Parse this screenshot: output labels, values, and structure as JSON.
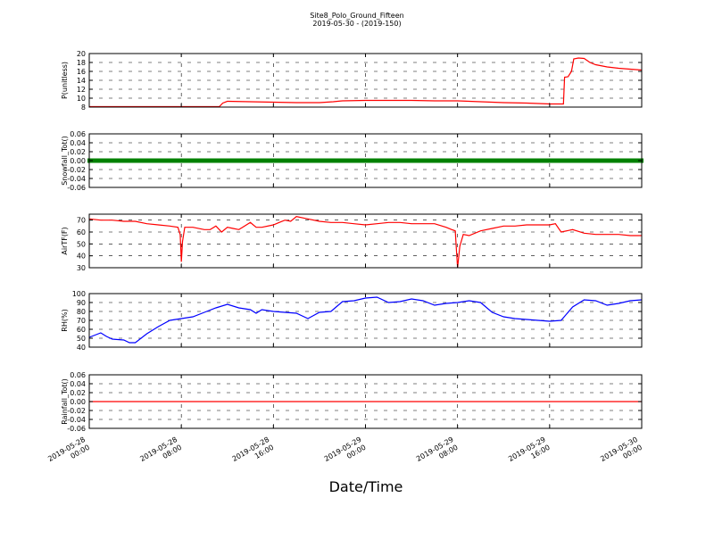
{
  "chart_data": {
    "type": "line",
    "title": "Site8_Polo_Ground_Fifteen",
    "subtitle": "2019-05-30 - (2019-150)",
    "xlabel": "Date/Time",
    "x_ticks": [
      [
        "2019-05-28",
        "00:00"
      ],
      [
        "2019-05-28",
        "08:00"
      ],
      [
        "2019-05-28",
        "16:00"
      ],
      [
        "2019-05-29",
        "00:00"
      ],
      [
        "2019-05-29",
        "08:00"
      ],
      [
        "2019-05-29",
        "16:00"
      ],
      [
        "2019-05-30",
        "00:00"
      ]
    ],
    "xlim_hours": [
      0,
      48
    ],
    "grid": true,
    "panels": [
      {
        "ylabel": "P(unitless)",
        "ylim": [
          8,
          20
        ],
        "yticks": [
          "8",
          "10",
          "12",
          "14",
          "16",
          "18",
          "20"
        ],
        "color": "#ff0000",
        "marker": false,
        "x": [
          0,
          11.3,
          11.6,
          12,
          14,
          16,
          18,
          20,
          21.2,
          22,
          24,
          26,
          28,
          30,
          32,
          34,
          36,
          38,
          40,
          41.2,
          41.3,
          41.6,
          41.9,
          42.1,
          42.5,
          43,
          43.5,
          44,
          45,
          46,
          47,
          48
        ],
        "y": [
          8.1,
          8.1,
          8.9,
          9.3,
          9.2,
          9.1,
          9.0,
          9.0,
          9.2,
          9.4,
          9.5,
          9.5,
          9.5,
          9.4,
          9.4,
          9.2,
          9.0,
          8.9,
          8.7,
          8.7,
          14.7,
          14.8,
          16.0,
          18.8,
          19.0,
          18.9,
          18.0,
          17.5,
          17.0,
          16.7,
          16.5,
          16.3
        ]
      },
      {
        "ylabel": "Snowfall_Tot()",
        "ylim": [
          -0.06,
          0.06
        ],
        "yticks": [
          "-0.06",
          "-0.04",
          "-0.02",
          "0.00",
          "0.02",
          "0.04",
          "0.06"
        ],
        "color": "#008000",
        "marker": true,
        "x": [
          0,
          48
        ],
        "y": [
          0,
          0
        ]
      },
      {
        "ylabel": "AirTF(F)",
        "ylim": [
          30,
          75
        ],
        "yticks": [
          "30",
          "40",
          "50",
          "60",
          "70"
        ],
        "color": "#ff0000",
        "marker": false,
        "x": [
          0,
          1,
          2,
          3,
          4,
          5,
          6,
          7,
          7.7,
          7.9,
          8.0,
          8.1,
          8.3,
          9,
          10,
          10.5,
          11,
          11.5,
          12,
          12.5,
          13,
          14,
          14.5,
          15,
          16,
          16.5,
          17,
          17.5,
          18,
          19,
          20,
          21,
          22,
          23,
          24,
          25,
          26,
          27,
          28,
          29,
          30,
          31,
          31.5,
          31.8,
          31.9,
          32.0,
          32.2,
          32.5,
          33,
          34,
          35,
          36,
          37,
          38,
          39,
          40,
          40.5,
          41,
          42,
          43,
          44,
          45,
          46,
          47,
          48
        ],
        "y": [
          71,
          70,
          70,
          69,
          69,
          67,
          66,
          65,
          64,
          58,
          35,
          52,
          64,
          64,
          62,
          62,
          65,
          60,
          64,
          63,
          62,
          68,
          64,
          64,
          66,
          68,
          70,
          69,
          73,
          71,
          69,
          68,
          68,
          67,
          66,
          67,
          68,
          68,
          67,
          67,
          67,
          64,
          62,
          61,
          45,
          30,
          48,
          58,
          57,
          61,
          63,
          65,
          65,
          66,
          66,
          66,
          67,
          60,
          62,
          59,
          58,
          58,
          58,
          57,
          57
        ]
      },
      {
        "ylabel": "RH(%)",
        "ylim": [
          40,
          100
        ],
        "yticks": [
          "40",
          "50",
          "60",
          "70",
          "80",
          "90",
          "100"
        ],
        "color": "#0000ff",
        "marker": false,
        "x": [
          0,
          1,
          1.5,
          2,
          3,
          3.5,
          4,
          5,
          6,
          7,
          8,
          9,
          10,
          11,
          12,
          13,
          14,
          14.5,
          15,
          16,
          17,
          18,
          19,
          20,
          21,
          22,
          23,
          24,
          25,
          26,
          27,
          28,
          29,
          30,
          31,
          32,
          33,
          34,
          35,
          36,
          37,
          38,
          39,
          40,
          41,
          42,
          43,
          44,
          45,
          46,
          47,
          48
        ],
        "y": [
          51,
          56,
          52,
          49,
          48,
          45,
          45,
          55,
          63,
          70,
          72,
          74,
          79,
          84,
          88,
          84,
          82,
          78,
          82,
          80,
          79,
          78,
          72,
          79,
          80,
          91,
          92,
          95,
          96,
          90,
          91,
          94,
          92,
          87,
          89,
          90,
          92,
          90,
          79,
          74,
          72,
          71,
          70,
          69,
          70,
          85,
          93,
          92,
          87,
          89,
          92,
          93
        ]
      },
      {
        "ylabel": "Rainfall_Tot()",
        "ylim": [
          -0.06,
          0.06
        ],
        "yticks": [
          "-0.06",
          "-0.04",
          "-0.02",
          "0.00",
          "0.02",
          "0.04",
          "0.06"
        ],
        "color": "#ff0000",
        "marker": false,
        "x": [
          0,
          48
        ],
        "y": [
          0,
          0
        ]
      }
    ]
  }
}
